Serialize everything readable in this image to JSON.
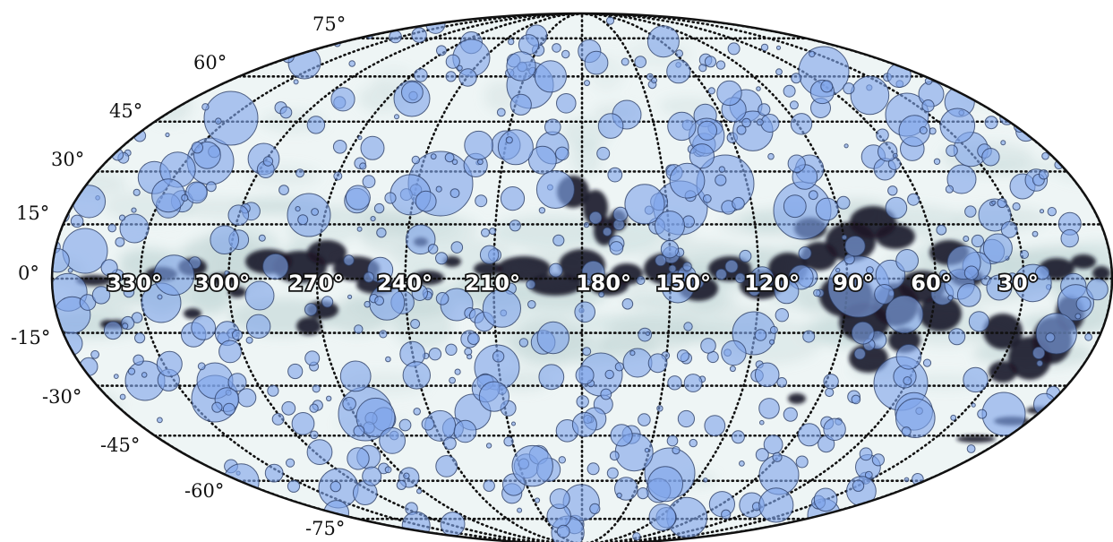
{
  "map": {
    "projection": "mollweide",
    "outline_color": "#111111",
    "background_color": "#eef5f5",
    "source_fill_color": "#7fa4ea",
    "dust_color": "#1b1428"
  },
  "latitude_labels": [
    "75°",
    "60°",
    "45°",
    "30°",
    "15°",
    "0°",
    "-15°",
    "-30°",
    "-45°",
    "-60°",
    "-75°"
  ],
  "longitude_labels": [
    "330°",
    "300°",
    "270°",
    "240°",
    "210°",
    "180°",
    "150°",
    "120°",
    "90°",
    "60°",
    "30°"
  ]
}
